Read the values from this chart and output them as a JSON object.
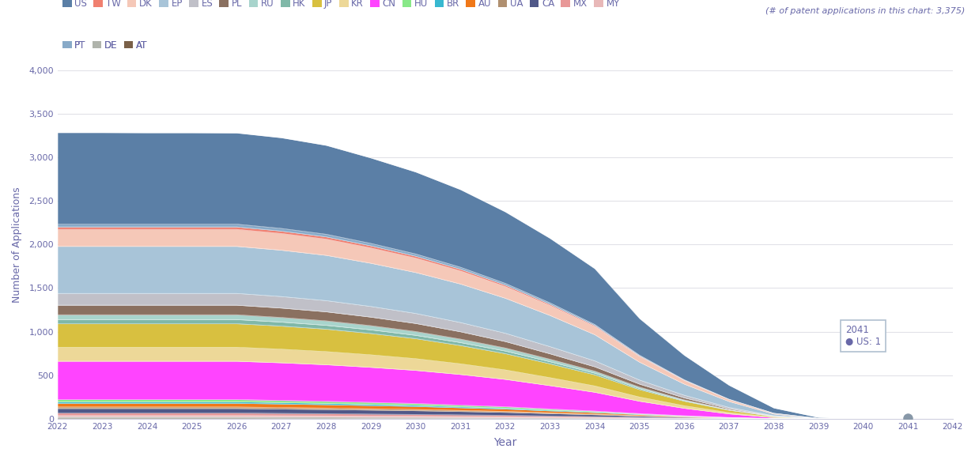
{
  "subtitle": "(# of patent applications in this chart: 3,375)",
  "xlabel": "Year",
  "ylabel": "Number of Applications",
  "years": [
    2022,
    2023,
    2024,
    2025,
    2026,
    2027,
    2028,
    2029,
    2030,
    2031,
    2032,
    2033,
    2034,
    2035,
    2036,
    2037,
    2038,
    2039,
    2040,
    2041
  ],
  "ylim": [
    0,
    4000
  ],
  "yticks": [
    0,
    500,
    1000,
    1500,
    2000,
    2500,
    3000,
    3500,
    4000
  ],
  "layers_bottom_to_top": [
    {
      "label": "AT",
      "color": "#7a6048",
      "values": [
        8,
        8,
        8,
        8,
        8,
        7,
        7,
        6,
        6,
        5,
        5,
        4,
        3,
        2,
        1,
        0,
        0,
        0,
        0,
        0
      ]
    },
    {
      "label": "DE",
      "color": "#b0b4ac",
      "values": [
        16,
        16,
        16,
        16,
        16,
        15,
        14,
        13,
        12,
        11,
        10,
        8,
        6,
        4,
        2,
        1,
        0,
        0,
        0,
        0
      ]
    },
    {
      "label": "MY",
      "color": "#e8b8b8",
      "values": [
        14,
        14,
        14,
        14,
        14,
        13,
        12,
        11,
        10,
        9,
        8,
        6,
        5,
        3,
        2,
        1,
        0,
        0,
        0,
        0
      ]
    },
    {
      "label": "MX",
      "color": "#e89898",
      "values": [
        28,
        28,
        28,
        28,
        28,
        27,
        26,
        24,
        22,
        20,
        17,
        14,
        11,
        7,
        4,
        2,
        0,
        0,
        0,
        0
      ]
    },
    {
      "label": "CA",
      "color": "#505888",
      "values": [
        52,
        52,
        52,
        52,
        52,
        50,
        48,
        46,
        43,
        39,
        34,
        28,
        22,
        15,
        9,
        4,
        1,
        0,
        0,
        0
      ]
    },
    {
      "label": "UA",
      "color": "#b09070",
      "values": [
        18,
        18,
        18,
        18,
        18,
        17,
        16,
        15,
        14,
        12,
        11,
        9,
        7,
        5,
        3,
        1,
        0,
        0,
        0,
        0
      ]
    },
    {
      "label": "AU",
      "color": "#f07818",
      "values": [
        42,
        42,
        42,
        42,
        42,
        41,
        39,
        37,
        35,
        31,
        27,
        22,
        18,
        12,
        7,
        3,
        1,
        0,
        0,
        0
      ]
    },
    {
      "label": "BR",
      "color": "#38b8d0",
      "values": [
        18,
        18,
        18,
        18,
        18,
        17,
        16,
        15,
        14,
        12,
        11,
        9,
        7,
        5,
        3,
        1,
        0,
        0,
        0,
        0
      ]
    },
    {
      "label": "HU",
      "color": "#88e888",
      "values": [
        25,
        25,
        25,
        25,
        25,
        24,
        23,
        22,
        20,
        18,
        16,
        13,
        10,
        7,
        4,
        2,
        0,
        0,
        0,
        0
      ]
    },
    {
      "label": "CN",
      "color": "#ff44ff",
      "values": [
        440,
        440,
        440,
        440,
        440,
        432,
        420,
        402,
        380,
        352,
        314,
        268,
        216,
        142,
        86,
        42,
        12,
        1,
        0,
        0
      ]
    },
    {
      "label": "KR",
      "color": "#edd898",
      "values": [
        160,
        160,
        160,
        160,
        160,
        156,
        150,
        143,
        134,
        122,
        108,
        91,
        72,
        48,
        29,
        14,
        4,
        0,
        0,
        0
      ]
    },
    {
      "label": "JP",
      "color": "#d8c040",
      "values": [
        270,
        270,
        270,
        270,
        270,
        265,
        258,
        245,
        230,
        210,
        187,
        159,
        128,
        85,
        52,
        27,
        8,
        1,
        0,
        0
      ]
    },
    {
      "label": "HK",
      "color": "#80b8a8",
      "values": [
        48,
        48,
        48,
        48,
        48,
        46,
        44,
        42,
        38,
        34,
        30,
        24,
        19,
        13,
        7,
        3,
        1,
        0,
        0,
        0
      ]
    },
    {
      "label": "RU",
      "color": "#a8d4cc",
      "values": [
        55,
        55,
        55,
        55,
        55,
        53,
        51,
        48,
        44,
        40,
        35,
        29,
        23,
        16,
        9,
        4,
        1,
        0,
        0,
        0
      ]
    },
    {
      "label": "PL",
      "color": "#8a7060",
      "values": [
        110,
        110,
        110,
        110,
        110,
        108,
        104,
        98,
        92,
        84,
        74,
        62,
        50,
        34,
        22,
        11,
        3,
        0,
        0,
        0
      ]
    },
    {
      "label": "ES",
      "color": "#c0c0c8",
      "values": [
        135,
        135,
        135,
        135,
        135,
        132,
        128,
        122,
        115,
        106,
        95,
        82,
        68,
        47,
        30,
        15,
        4,
        0,
        0,
        0
      ]
    },
    {
      "label": "EP",
      "color": "#a8c4d8",
      "values": [
        540,
        540,
        540,
        540,
        540,
        532,
        520,
        496,
        470,
        442,
        402,
        358,
        300,
        205,
        128,
        68,
        20,
        2,
        0,
        0
      ]
    },
    {
      "label": "DK",
      "color": "#f5c8b8",
      "values": [
        195,
        195,
        195,
        195,
        195,
        192,
        186,
        176,
        165,
        150,
        134,
        114,
        94,
        65,
        42,
        22,
        7,
        1,
        0,
        0
      ]
    },
    {
      "label": "TW",
      "color": "#f08070",
      "values": [
        28,
        28,
        28,
        28,
        28,
        27,
        26,
        24,
        22,
        20,
        17,
        14,
        11,
        7,
        4,
        2,
        1,
        0,
        0,
        0
      ]
    },
    {
      "label": "PT",
      "color": "#88aac8",
      "values": [
        32,
        32,
        32,
        32,
        32,
        31,
        30,
        28,
        26,
        23,
        20,
        17,
        13,
        9,
        5,
        2,
        1,
        0,
        0,
        0
      ]
    },
    {
      "label": "US",
      "color": "#5b7fa6",
      "values": [
        1050,
        1050,
        1048,
        1048,
        1046,
        1040,
        1020,
        980,
        940,
        890,
        820,
        740,
        640,
        420,
        280,
        160,
        60,
        10,
        2,
        1
      ]
    }
  ],
  "legend_row1": [
    "US",
    "TW",
    "DK",
    "EP",
    "ES",
    "PL",
    "RU",
    "HK",
    "JP",
    "KR",
    "CN",
    "HU",
    "BR",
    "AU",
    "UA",
    "CA",
    "MX",
    "MY"
  ],
  "legend_row2": [
    "PT",
    "DE",
    "AT"
  ],
  "background_color": "#ffffff",
  "grid_color": "#e2e2e8",
  "text_color": "#6868a8",
  "dot_color": "#8898a8"
}
